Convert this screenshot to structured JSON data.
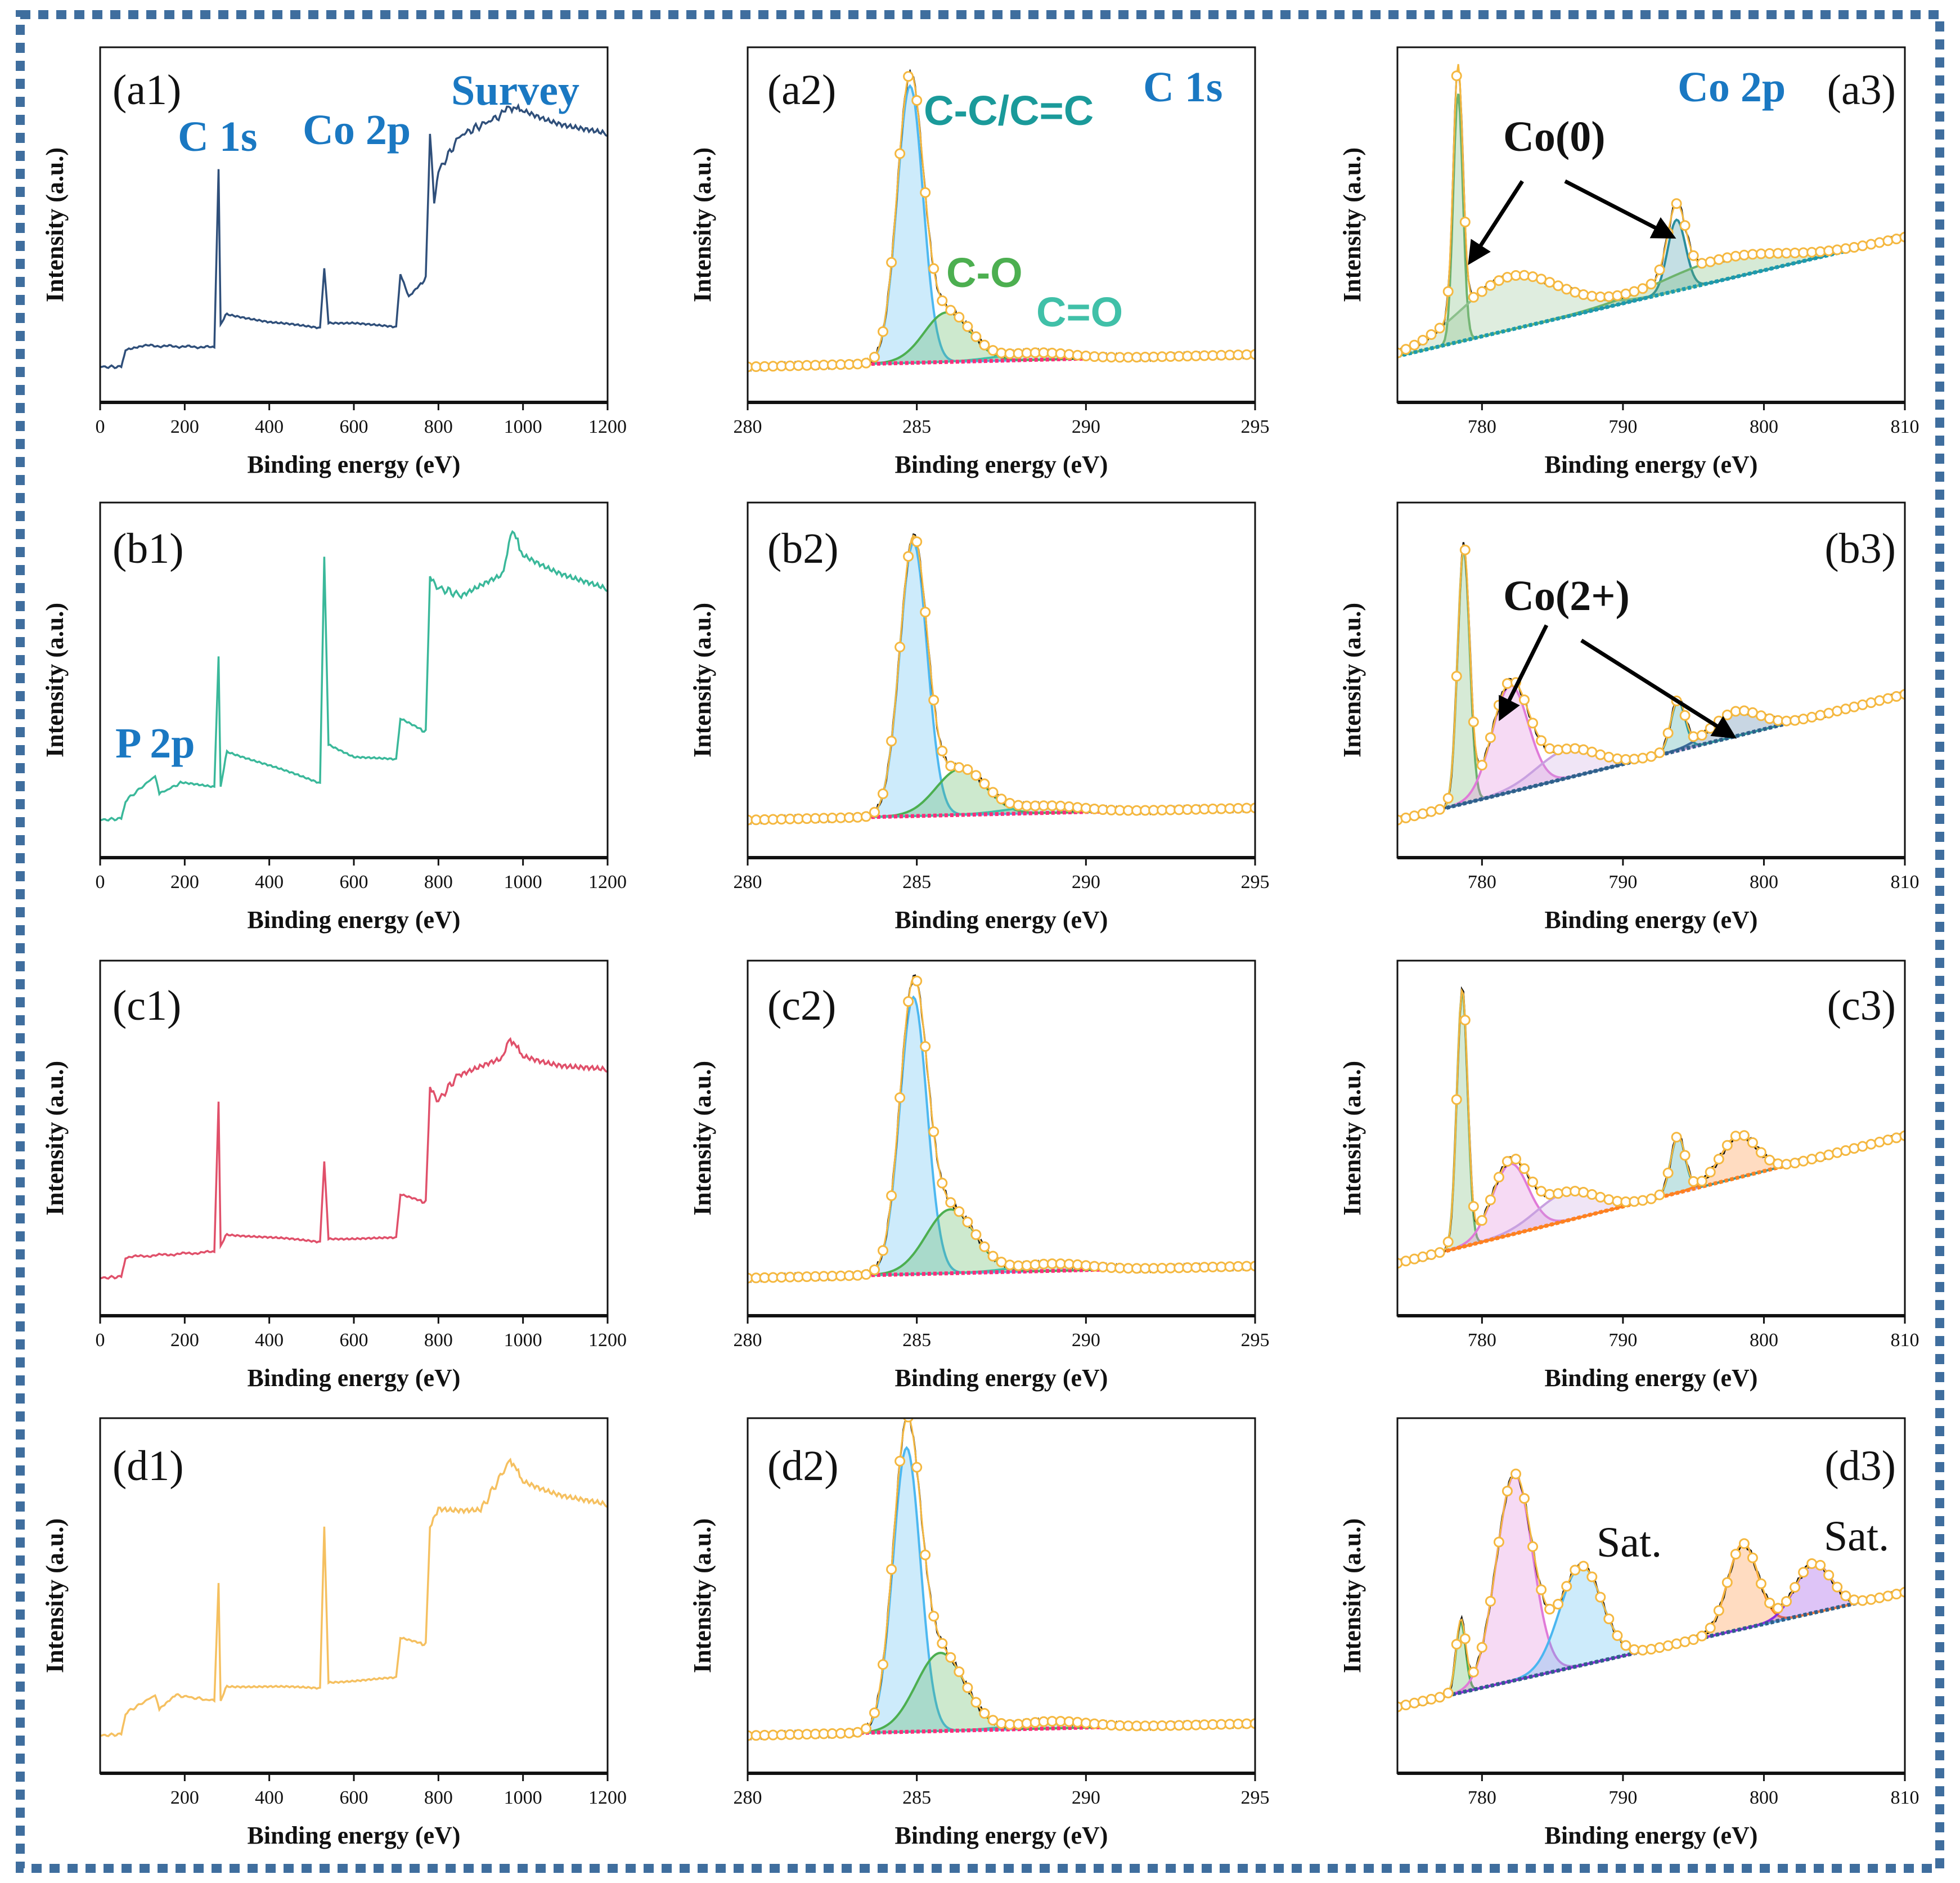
{
  "figure": {
    "border_color": "#3f6e9e"
  },
  "chart_data": [
    {
      "panel": "(a1)",
      "type": "line",
      "xlabel": "Binding energy (eV)",
      "ylabel": "Intensity (a.u.)",
      "xlim": [
        0,
        1200
      ],
      "ylim": [
        0,
        100
      ],
      "grid": false,
      "xticks": [
        0,
        200,
        400,
        600,
        800,
        1000,
        1200
      ],
      "color": "#2f4f7a",
      "points": [
        [
          0,
          10
        ],
        [
          50,
          10
        ],
        [
          60,
          15
        ],
        [
          100,
          16
        ],
        [
          270,
          15.5
        ],
        [
          280,
          66
        ],
        [
          285,
          22
        ],
        [
          300,
          25
        ],
        [
          400,
          22.5
        ],
        [
          520,
          21
        ],
        [
          530,
          38
        ],
        [
          540,
          22.5
        ],
        [
          600,
          22.5
        ],
        [
          700,
          21
        ],
        [
          710,
          36
        ],
        [
          730,
          29.6
        ],
        [
          770,
          35
        ],
        [
          780,
          76
        ],
        [
          790,
          57
        ],
        [
          800,
          65
        ],
        [
          850,
          75
        ],
        [
          900,
          78
        ],
        [
          950,
          81
        ],
        [
          970,
          83
        ],
        [
          1000,
          82
        ],
        [
          1200,
          75
        ]
      ],
      "annotations": [
        "C 1s",
        "Co 2p",
        "Survey"
      ]
    },
    {
      "panel": "(a2)",
      "type": "area",
      "xlabel": "Binding energy (eV)",
      "ylabel": "Intensity (a.u.)",
      "xlim": [
        280,
        295
      ],
      "ylim": [
        0,
        100
      ],
      "grid": false,
      "xticks": [
        280,
        285,
        290,
        295
      ],
      "background": [
        [
          280,
          10
        ],
        [
          295,
          13.5
        ]
      ],
      "background_color": "#ff2d7a",
      "envelope_color": "#f5b840",
      "components": [
        {
          "center": 284.8,
          "height": 78,
          "fwhm": 0.9,
          "color": "#4db8f0"
        },
        {
          "center": 285.9,
          "height": 14,
          "fwhm": 1.6,
          "color": "#4caf50"
        },
        {
          "center": 288.5,
          "height": 2,
          "fwhm": 2.5,
          "color": "#40c0a8"
        }
      ],
      "annotations": [
        "C-C/C=C",
        "C 1s",
        "C-O",
        "C=O"
      ]
    },
    {
      "panel": "(a3)",
      "type": "area",
      "xlabel": "Binding energy (eV)",
      "ylabel": "Intensity (a.u.)",
      "xlim": [
        774,
        810
      ],
      "ylim": [
        0,
        100
      ],
      "grid": false,
      "xticks": [
        780,
        790,
        800,
        810
      ],
      "background": [
        [
          774,
          13
        ],
        [
          810,
          46.5
        ]
      ],
      "background_color": "#1a9bb0",
      "envelope_color": "#f5b840",
      "components": [
        {
          "center": 778.3,
          "height": 70,
          "fwhm": 0.8,
          "color": "#6db36d"
        },
        {
          "center": 782,
          "height": 15,
          "fwhm": 8,
          "color": "#8cc08c"
        },
        {
          "center": 793.8,
          "height": 20,
          "fwhm": 1.5,
          "color": "#2a8d9d"
        },
        {
          "center": 797,
          "height": 6,
          "fwhm": 10,
          "color": "#6db36d"
        }
      ],
      "annotations": [
        "Co 2p",
        "Co(0)"
      ]
    },
    {
      "panel": "(b1)",
      "type": "line",
      "xlabel": "Binding energy (eV)",
      "ylabel": "Intensity (a.u.)",
      "xlim": [
        0,
        1200
      ],
      "ylim": [
        0,
        100
      ],
      "grid": false,
      "xticks": [
        0,
        200,
        400,
        600,
        800,
        1000,
        1200
      ],
      "color": "#3ab89a",
      "points": [
        [
          0,
          10.6
        ],
        [
          50,
          11
        ],
        [
          60,
          16
        ],
        [
          130,
          23
        ],
        [
          140,
          18
        ],
        [
          190,
          21
        ],
        [
          270,
          20
        ],
        [
          280,
          57
        ],
        [
          285,
          20
        ],
        [
          300,
          30
        ],
        [
          520,
          21
        ],
        [
          530,
          85
        ],
        [
          540,
          32
        ],
        [
          600,
          28.5
        ],
        [
          700,
          27.5
        ],
        [
          710,
          39
        ],
        [
          770,
          35.5
        ],
        [
          780,
          79.6
        ],
        [
          800,
          76
        ],
        [
          850,
          74
        ],
        [
          950,
          79
        ],
        [
          975,
          92.6
        ],
        [
          1000,
          85
        ],
        [
          1100,
          80
        ],
        [
          1200,
          75
        ]
      ],
      "annotations": [
        "P 2p"
      ]
    },
    {
      "panel": "(b2)",
      "type": "area",
      "xlabel": "Binding energy (eV)",
      "ylabel": "Intensity (a.u.)",
      "xlim": [
        280,
        295
      ],
      "ylim": [
        0,
        100
      ],
      "grid": false,
      "xticks": [
        280,
        285,
        290,
        295
      ],
      "background": [
        [
          280,
          10.6
        ],
        [
          295,
          14
        ]
      ],
      "background_color": "#ff2d7a",
      "envelope_color": "#f5b840",
      "components": [
        {
          "center": 284.9,
          "height": 77,
          "fwhm": 0.95,
          "color": "#4db8f0"
        },
        {
          "center": 286.3,
          "height": 13,
          "fwhm": 1.7,
          "color": "#4caf50"
        },
        {
          "center": 288.8,
          "height": 2,
          "fwhm": 2.5,
          "color": "#40c0a8"
        }
      ],
      "annotations": []
    },
    {
      "panel": "(b3)",
      "type": "area",
      "xlabel": "Binding energy (eV)",
      "ylabel": "Intensity (a.u.)",
      "xlim": [
        774,
        810
      ],
      "ylim": [
        0,
        100
      ],
      "grid": false,
      "xticks": [
        780,
        790,
        800,
        810
      ],
      "background": [
        [
          774,
          10.6
        ],
        [
          810,
          46
        ]
      ],
      "background_color": "#2f5f8a",
      "envelope_color": "#f5b840",
      "components": [
        {
          "center": 778.7,
          "height": 72,
          "fwhm": 1.0,
          "color": "#6db36d"
        },
        {
          "center": 782,
          "height": 30,
          "fwhm": 3,
          "color": "#e07ad8"
        },
        {
          "center": 786,
          "height": 8,
          "fwhm": 5,
          "color": "#c8a0e0"
        },
        {
          "center": 793.9,
          "height": 14,
          "fwhm": 1.2,
          "color": "#2a9d9d"
        },
        {
          "center": 798,
          "height": 7,
          "fwhm": 4,
          "color": "#3a6a9a"
        }
      ],
      "annotations": [
        "Co(2+)"
      ]
    },
    {
      "panel": "(c1)",
      "type": "line",
      "xlabel": "Binding energy (eV)",
      "ylabel": "Intensity (a.u.)",
      "xlim": [
        0,
        1200
      ],
      "ylim": [
        0,
        100
      ],
      "grid": false,
      "xticks": [
        0,
        200,
        400,
        600,
        800,
        1000,
        1200
      ],
      "color": "#e0506a",
      "points": [
        [
          0,
          10.6
        ],
        [
          50,
          11
        ],
        [
          60,
          16.5
        ],
        [
          270,
          18
        ],
        [
          280,
          60.6
        ],
        [
          285,
          19.7
        ],
        [
          300,
          23
        ],
        [
          520,
          20.8
        ],
        [
          530,
          43.7
        ],
        [
          540,
          21.8
        ],
        [
          700,
          21.8
        ],
        [
          710,
          34
        ],
        [
          770,
          32
        ],
        [
          780,
          64.8
        ],
        [
          800,
          60.6
        ],
        [
          850,
          68.3
        ],
        [
          950,
          71.8
        ],
        [
          970,
          78
        ],
        [
          1000,
          72.9
        ],
        [
          1200,
          68.7
        ]
      ],
      "annotations": []
    },
    {
      "panel": "(c2)",
      "type": "area",
      "xlabel": "Binding energy (eV)",
      "ylabel": "Intensity (a.u.)",
      "xlim": [
        280,
        295
      ],
      "ylim": [
        0,
        100
      ],
      "grid": false,
      "xticks": [
        280,
        285,
        290,
        295
      ],
      "background": [
        [
          280,
          10.6
        ],
        [
          295,
          14
        ]
      ],
      "background_color": "#ff2d7a",
      "envelope_color": "#f5b840",
      "components": [
        {
          "center": 284.9,
          "height": 78,
          "fwhm": 0.95,
          "color": "#4db8f0"
        },
        {
          "center": 286.0,
          "height": 18,
          "fwhm": 1.7,
          "color": "#4caf50"
        },
        {
          "center": 289,
          "height": 2,
          "fwhm": 2.5,
          "color": "#40c0a8"
        }
      ],
      "annotations": []
    },
    {
      "panel": "(c3)",
      "type": "area",
      "xlabel": "Binding energy (eV)",
      "ylabel": "Intensity (a.u.)",
      "xlim": [
        774,
        810
      ],
      "ylim": [
        0,
        100
      ],
      "grid": false,
      "xticks": [
        780,
        790,
        800,
        810
      ],
      "background": [
        [
          774,
          14.8
        ],
        [
          810,
          50.7
        ]
      ],
      "background_color": "#ff8020",
      "envelope_color": "#f5b840",
      "components": [
        {
          "center": 778.6,
          "height": 72,
          "fwhm": 0.9,
          "color": "#6db36d"
        },
        {
          "center": 782,
          "height": 20,
          "fwhm": 3,
          "color": "#e07ad8"
        },
        {
          "center": 786,
          "height": 8,
          "fwhm": 5,
          "color": "#c8a0e0"
        },
        {
          "center": 793.9,
          "height": 16,
          "fwhm": 1.2,
          "color": "#2a9d9d"
        },
        {
          "center": 798.2,
          "height": 12,
          "fwhm": 3,
          "color": "#ff8020"
        }
      ],
      "annotations": []
    },
    {
      "panel": "(d1)",
      "type": "line",
      "xlabel": "Binding energy (eV)",
      "ylabel": "Intensity (a.u.)",
      "xlim": [
        0,
        1200
      ],
      "ylim": [
        0,
        100
      ],
      "grid": false,
      "xticks": [
        200,
        400,
        600,
        800,
        1000,
        1200
      ],
      "color": "#f5c060",
      "points": [
        [
          0,
          10.6
        ],
        [
          50,
          11
        ],
        [
          60,
          16.9
        ],
        [
          130,
          22
        ],
        [
          140,
          18
        ],
        [
          180,
          22
        ],
        [
          270,
          20.4
        ],
        [
          280,
          53.9
        ],
        [
          285,
          20.4
        ],
        [
          300,
          24.6
        ],
        [
          520,
          24
        ],
        [
          530,
          69.7
        ],
        [
          540,
          25.7
        ],
        [
          700,
          26.8
        ],
        [
          710,
          38
        ],
        [
          770,
          36.3
        ],
        [
          780,
          69.7
        ],
        [
          800,
          75
        ],
        [
          900,
          74
        ],
        [
          970,
          88.4
        ],
        [
          1000,
          82
        ],
        [
          1200,
          75
        ]
      ],
      "annotations": []
    },
    {
      "panel": "(d2)",
      "type": "area",
      "xlabel": "Binding energy (eV)",
      "ylabel": "Intensity (a.u.)",
      "xlim": [
        280,
        295
      ],
      "ylim": [
        0,
        100
      ],
      "grid": false,
      "xticks": [
        280,
        285,
        290,
        295
      ],
      "background": [
        [
          280,
          10.6
        ],
        [
          295,
          14
        ]
      ],
      "background_color": "#ff2d7a",
      "envelope_color": "#f5b840",
      "components": [
        {
          "center": 284.7,
          "height": 80,
          "fwhm": 0.95,
          "color": "#4db8f0"
        },
        {
          "center": 285.7,
          "height": 22,
          "fwhm": 1.7,
          "color": "#4caf50"
        },
        {
          "center": 289,
          "height": 2,
          "fwhm": 2.5,
          "color": "#40c0a8"
        }
      ],
      "annotations": []
    },
    {
      "panel": "(d3)",
      "type": "area",
      "xlabel": "Binding energy (eV)",
      "ylabel": "Intensity (a.u.)",
      "xlim": [
        774,
        810
      ],
      "ylim": [
        0,
        100
      ],
      "grid": false,
      "xticks": [
        780,
        790,
        800,
        810
      ],
      "background": [
        [
          774,
          18.7
        ],
        [
          810,
          51
        ]
      ],
      "background_color": "#2f5f8a",
      "envelope_color": "#f5b840",
      "components": [
        {
          "center": 778.5,
          "height": 20,
          "fwhm": 0.8,
          "color": "#4caf50"
        },
        {
          "center": 782.3,
          "height": 58,
          "fwhm": 3,
          "color": "#e07ad8"
        },
        {
          "center": 787,
          "height": 28,
          "fwhm": 3.5,
          "color": "#4ab6f0"
        },
        {
          "center": 798.5,
          "height": 24,
          "fwhm": 2.5,
          "color": "#ff8020"
        },
        {
          "center": 803.5,
          "height": 14,
          "fwhm": 3,
          "color": "#8a2be2"
        }
      ],
      "annotations": [
        "Sat.",
        "Sat."
      ]
    }
  ]
}
